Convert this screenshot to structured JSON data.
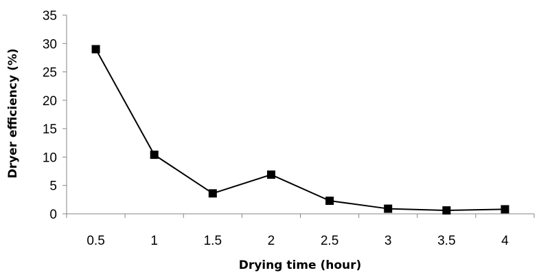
{
  "chart_data": {
    "type": "line",
    "title": "",
    "xlabel": "Drying time (hour)",
    "ylabel": "Dryer efficiency (%)",
    "categories": [
      "0.5",
      "1",
      "1.5",
      "2",
      "2.5",
      "3",
      "3.5",
      "4"
    ],
    "x": [
      0.5,
      1,
      1.5,
      2,
      2.5,
      3,
      3.5,
      4
    ],
    "series": [
      {
        "values": [
          29.0,
          10.4,
          3.6,
          6.9,
          2.3,
          0.9,
          0.6,
          0.8
        ]
      }
    ],
    "ylim": [
      0,
      35
    ],
    "yticks": [
      "0",
      "5",
      "10",
      "15",
      "20",
      "25",
      "30",
      "35"
    ],
    "grid": false,
    "legend": "none",
    "marker": "square",
    "line_color": "#000000"
  }
}
